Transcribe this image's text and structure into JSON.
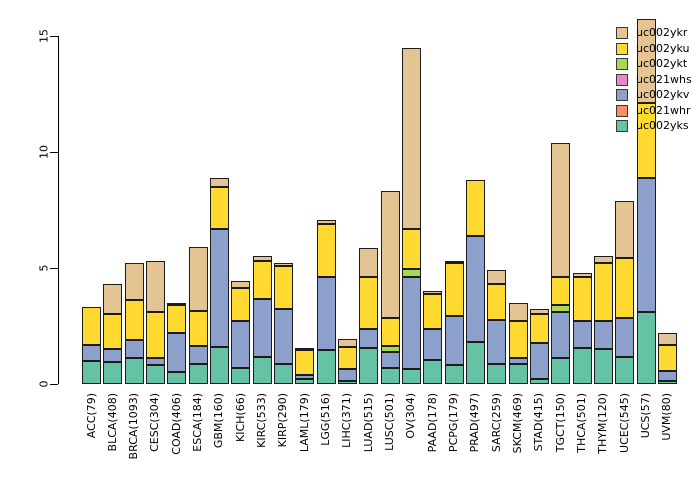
{
  "chart_data": {
    "type": "bar",
    "stacked": true,
    "title": "",
    "xlabel": "",
    "ylabel": "",
    "ylim": [
      0,
      15
    ],
    "yticks": [
      0,
      5,
      10,
      15
    ],
    "grid": false,
    "background": "#ffffff",
    "bar_border_color": "#1c1c1c",
    "categories": [
      "ACC(79)",
      "BLCA(408)",
      "BRCA(1093)",
      "CESC(304)",
      "COAD(406)",
      "ESCA(184)",
      "GBM(160)",
      "KICH(66)",
      "KIRC(533)",
      "KIRP(290)",
      "LAML(179)",
      "LGG(516)",
      "LIHC(371)",
      "LUAD(515)",
      "LUSC(501)",
      "OV(304)",
      "PAAD(178)",
      "PCPG(179)",
      "PRAD(497)",
      "SARC(259)",
      "SKCM(469)",
      "STAD(415)",
      "TGCT(150)",
      "THCA(501)",
      "THYM(120)",
      "UCEC(545)",
      "UCS(57)",
      "UVM(80)"
    ],
    "series": [
      {
        "name": "uc002yks",
        "color": "#66C2A5",
        "values": [
          1.0,
          0.95,
          1.1,
          0.8,
          0.5,
          0.85,
          1.6,
          0.7,
          1.15,
          0.85,
          0.2,
          1.45,
          0.15,
          1.55,
          0.7,
          0.65,
          1.05,
          0.8,
          1.8,
          0.85,
          0.85,
          0.2,
          1.1,
          1.55,
          1.5,
          1.15,
          3.1,
          0.15
        ]
      },
      {
        "name": "uc021whr",
        "color": "#FC8D62",
        "values": [
          0,
          0,
          0,
          0,
          0,
          0,
          0,
          0,
          0,
          0,
          0,
          0,
          0,
          0,
          0,
          0,
          0,
          0,
          0,
          0,
          0,
          0,
          0,
          0,
          0,
          0,
          0,
          0
        ]
      },
      {
        "name": "uc002ykv",
        "color": "#8DA0CB",
        "values": [
          0.7,
          0.55,
          0.8,
          0.3,
          1.7,
          0.8,
          5.1,
          2.0,
          2.5,
          2.4,
          0.2,
          3.15,
          0.5,
          0.8,
          0.7,
          3.95,
          1.3,
          2.15,
          4.6,
          1.9,
          0.25,
          1.55,
          2.0,
          1.15,
          1.2,
          1.7,
          5.8,
          0.4
        ]
      },
      {
        "name": "uc021whs",
        "color": "#E78AC3",
        "values": [
          0,
          0,
          0,
          0,
          0,
          0,
          0,
          0,
          0,
          0,
          0,
          0,
          0,
          0,
          0,
          0,
          0,
          0,
          0,
          0,
          0,
          0,
          0,
          0,
          0,
          0,
          0,
          0
        ]
      },
      {
        "name": "uc002ykt",
        "color": "#A6D854",
        "values": [
          0,
          0,
          0,
          0,
          0,
          0,
          0,
          0,
          0,
          0,
          0,
          0,
          0,
          0,
          0.25,
          0.35,
          0,
          0,
          0,
          0,
          0,
          0,
          0.3,
          0,
          0,
          0,
          0,
          0
        ]
      },
      {
        "name": "uc002yku",
        "color": "#FFD92F",
        "values": [
          1.6,
          1.5,
          1.7,
          2.0,
          1.2,
          1.5,
          1.8,
          1.45,
          1.65,
          1.85,
          1.05,
          2.3,
          0.95,
          2.25,
          1.2,
          1.75,
          1.55,
          2.25,
          2.4,
          1.55,
          1.6,
          1.25,
          1.2,
          1.9,
          2.5,
          2.6,
          3.2,
          1.15
        ]
      },
      {
        "name": "uc002ykr",
        "color": "#E5C494",
        "values": [
          0,
          1.3,
          1.6,
          2.2,
          0.1,
          2.75,
          0.4,
          0.3,
          0.2,
          0.1,
          0.1,
          0.15,
          0.35,
          1.25,
          5.45,
          7.8,
          0.1,
          0.1,
          0,
          0.6,
          0.8,
          0.25,
          5.8,
          0.2,
          0.3,
          2.45,
          3.65,
          0.5
        ]
      }
    ],
    "legend": {
      "position": "top-right",
      "entries_top_to_bottom": [
        {
          "label": "uc002ykr",
          "color": "#E5C494"
        },
        {
          "label": "uc002yku",
          "color": "#FFD92F"
        },
        {
          "label": "uc002ykt",
          "color": "#A6D854"
        },
        {
          "label": "uc021whs",
          "color": "#E78AC3"
        },
        {
          "label": "uc002ykv",
          "color": "#8DA0CB"
        },
        {
          "label": "uc021whr",
          "color": "#FC8D62"
        },
        {
          "label": "uc002yks",
          "color": "#66C2A5"
        }
      ]
    }
  }
}
